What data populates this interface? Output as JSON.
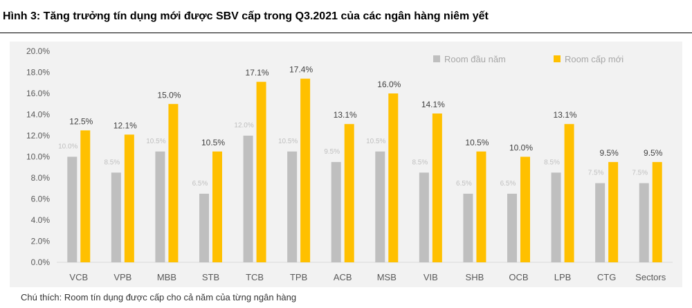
{
  "heading": {
    "title": "Hình 3: Tăng trưởng tín dụng mới được SBV cấp trong Q3.2021 của các ngân hàng niêm yết"
  },
  "footnote": "Chú thích: Room tín dụng được cấp cho cả năm của từng ngân hàng",
  "colors": {
    "series_start": "#bfbfbf",
    "series_new": "#ffc000",
    "label_start": "#bfbfbf",
    "label_new": "#404040",
    "axis_text": "#595959",
    "background": "#f2f2f2"
  },
  "chart_data": {
    "type": "bar",
    "title": "",
    "xlabel": "",
    "ylabel": "",
    "categories": [
      "VCB",
      "VPB",
      "MBB",
      "STB",
      "TCB",
      "TPB",
      "ACB",
      "MSB",
      "VIB",
      "SHB",
      "OCB",
      "LPB",
      "CTG",
      "Sectors"
    ],
    "series": [
      {
        "name": "Room đầu năm",
        "values": [
          10.0,
          8.5,
          10.5,
          6.5,
          12.0,
          10.5,
          9.5,
          10.5,
          8.5,
          6.5,
          6.5,
          8.5,
          7.5,
          7.5
        ],
        "labels": [
          "10.0%",
          "8.5%",
          "10.5%",
          "6.5%",
          "12.0%",
          "10.5%",
          "9.5%",
          "10.5%",
          "8.5%",
          "6.5%",
          "6.5%",
          "8.5%",
          "7.5%",
          "7.5%"
        ]
      },
      {
        "name": "Room cấp mới",
        "values": [
          12.5,
          12.1,
          15.0,
          10.5,
          17.1,
          17.4,
          13.1,
          16.0,
          14.1,
          10.5,
          10.0,
          13.1,
          9.5,
          9.5
        ],
        "labels": [
          "12.5%",
          "12.1%",
          "15.0%",
          "10.5%",
          "17.1%",
          "17.4%",
          "13.1%",
          "16.0%",
          "14.1%",
          "10.5%",
          "10.0%",
          "13.1%",
          "9.5%",
          "9.5%"
        ]
      }
    ],
    "ylim": [
      0,
      20
    ],
    "yticks": [
      "0.0%",
      "2.0%",
      "4.0%",
      "6.0%",
      "8.0%",
      "10.0%",
      "12.0%",
      "14.0%",
      "16.0%",
      "18.0%",
      "20.0%"
    ],
    "legend": "top-right",
    "grid": false
  }
}
